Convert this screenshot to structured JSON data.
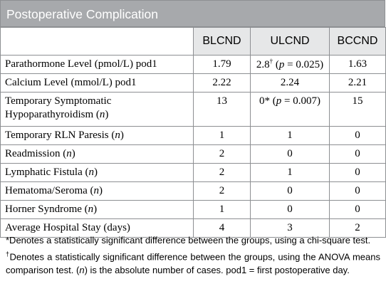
{
  "title": "Postoperative Complication",
  "columns": [
    "BLCND",
    "ULCND",
    "BCCND"
  ],
  "rows": [
    {
      "label": "Parathormone Level (pmol/L) pod1",
      "blcnd": "1.79",
      "ulcnd_value": "2.8",
      "ulcnd_mark": "†",
      "ulcnd_p": " (p = 0.025)",
      "bccnd": "1.63"
    },
    {
      "label": "Calcium Level (mmol/L) pod1",
      "blcnd": "2.22",
      "ulcnd": "2.24",
      "bccnd": "2.21"
    },
    {
      "label_line1": "Temporary Symptomatic",
      "label_line2": "Hypoparathyroidism (n)",
      "blcnd": "13",
      "ulcnd_value": "0*",
      "ulcnd_p": " (p = 0.007)",
      "bccnd": "15"
    },
    {
      "label": "Temporary RLN Paresis (n)",
      "blcnd": "1",
      "ulcnd": "1",
      "bccnd": "0"
    },
    {
      "label": "Readmission (n)",
      "blcnd": "2",
      "ulcnd": "0",
      "bccnd": "0"
    },
    {
      "label": "Lymphatic Fistula (n)",
      "blcnd": "2",
      "ulcnd": "1",
      "bccnd": "0"
    },
    {
      "label": "Hematoma/Seroma (n)",
      "blcnd": "2",
      "ulcnd": "0",
      "bccnd": "0"
    },
    {
      "label": "Horner Syndrome (n)",
      "blcnd": "1",
      "ulcnd": "0",
      "bccnd": "0"
    },
    {
      "label": "Average Hospital Stay (days)",
      "blcnd": "4",
      "ulcnd": "3",
      "bccnd": "2"
    }
  ],
  "footnotes": {
    "star": "*Denotes a statistically significant difference between the groups, using a chi-square test.",
    "dagger_mark": "†",
    "dagger": "Denotes a statistically significant difference between the groups, using the ANOVA means comparison test. (n) is the absolute number of cases. pod1 = first postoperative day."
  },
  "colors": {
    "title_bg": "#a7a9ac",
    "header_bg": "#e6e7e8",
    "border": "#8d8f92"
  }
}
